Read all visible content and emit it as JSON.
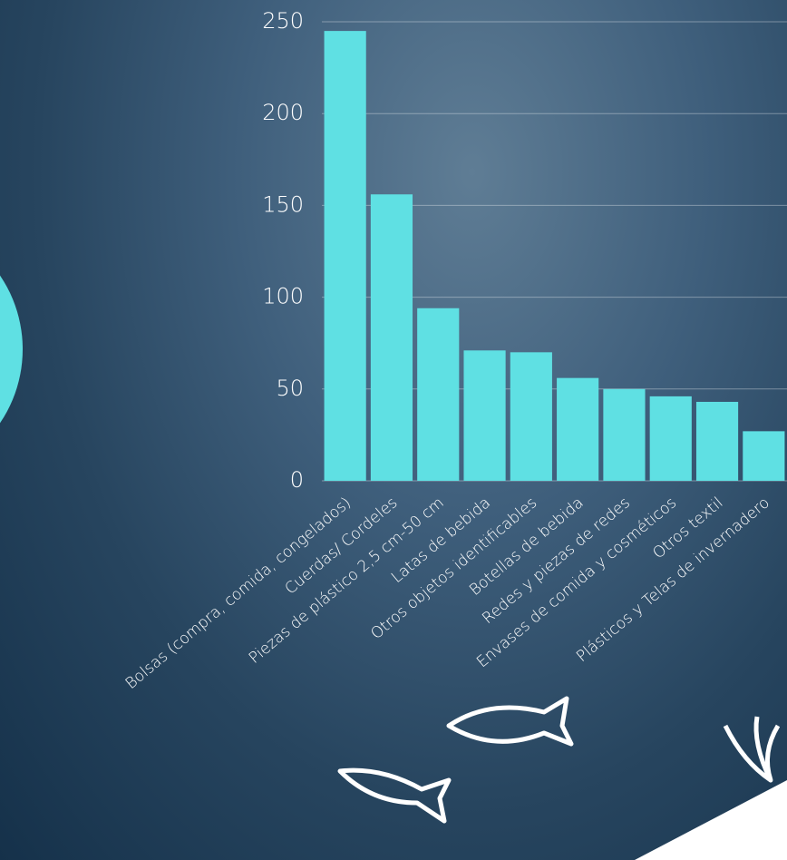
{
  "chart_data": {
    "type": "bar",
    "categories": [
      "Bolsas (compra, comida, congelados)",
      "Cuerdas/ Cordeles",
      "Piezas de plástico 2,5 cm-50 cm",
      "Latas de bebida",
      "Otros objetos identificables",
      "Botellas de bebida",
      "Redes y piezas de redes",
      "Envases de comida y cosméticos",
      "Otros textil",
      "Plásticos y Telas de invernadero"
    ],
    "values": [
      245,
      156,
      94,
      71,
      70,
      56,
      50,
      46,
      43,
      27
    ],
    "color": "#5fe0e3",
    "ylim": [
      0,
      250
    ],
    "yticks": [
      0,
      50,
      100,
      150,
      200,
      250
    ],
    "grid": true
  }
}
